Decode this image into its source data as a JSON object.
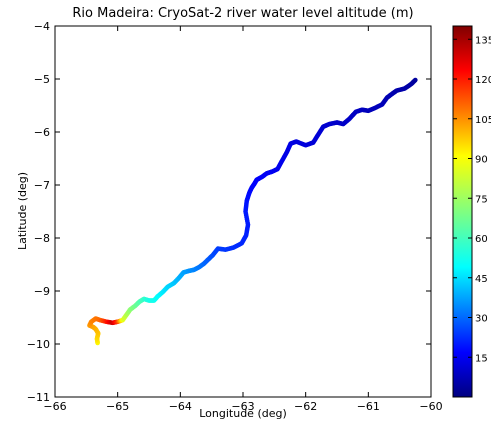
{
  "chart_data": {
    "type": "scatter",
    "title": "Rio Madeira: CryoSat-2 river water level altitude (m)",
    "xlabel": "Longitude (deg)",
    "ylabel": "Latitude (deg)",
    "xlim": [
      -66,
      -60
    ],
    "ylim": [
      -11,
      -4
    ],
    "xticks": [
      -66,
      -65,
      -64,
      -63,
      -62,
      -61,
      -60
    ],
    "yticks": [
      -4,
      -5,
      -6,
      -7,
      -8,
      -9,
      -10,
      -11
    ],
    "grid": false,
    "colorbar": {
      "range": [
        0,
        140
      ],
      "ticks": [
        15,
        30,
        45,
        60,
        75,
        90,
        105,
        120,
        135
      ],
      "colormap": "jet"
    },
    "series": [
      {
        "x": [
          -65.32,
          -65.33,
          -65.31,
          -65.35,
          -65.39,
          -65.45,
          -65.42,
          -65.35,
          -65.28,
          -65.18,
          -65.08,
          -65.0,
          -64.92,
          -64.86,
          -64.8,
          -64.72,
          -64.65,
          -64.58,
          -64.5,
          -64.42,
          -64.36,
          -64.28,
          -64.2,
          -64.1,
          -64.02,
          -63.95,
          -63.86,
          -63.78,
          -63.7,
          -63.62,
          -63.55,
          -63.48,
          -63.4,
          -63.28,
          -63.15,
          -63.02,
          -62.95,
          -62.92,
          -62.96,
          -62.94,
          -62.9,
          -62.86,
          -62.82,
          -62.78,
          -62.7,
          -62.62,
          -62.54,
          -62.45,
          -62.38,
          -62.3,
          -62.24,
          -62.15,
          -62.0,
          -61.88,
          -61.8,
          -61.72,
          -61.62,
          -61.5,
          -61.4,
          -61.3,
          -61.2,
          -61.1,
          -61.0,
          -60.9,
          -60.78,
          -60.7,
          -60.62,
          -60.55,
          -60.42,
          -60.32,
          -60.25
        ],
        "y": [
          -9.98,
          -9.9,
          -9.8,
          -9.72,
          -9.68,
          -9.65,
          -9.58,
          -9.52,
          -9.55,
          -9.58,
          -9.6,
          -9.58,
          -9.55,
          -9.45,
          -9.35,
          -9.28,
          -9.2,
          -9.15,
          -9.18,
          -9.18,
          -9.1,
          -9.02,
          -8.92,
          -8.85,
          -8.75,
          -8.65,
          -8.62,
          -8.6,
          -8.55,
          -8.48,
          -8.4,
          -8.32,
          -8.2,
          -8.22,
          -8.18,
          -8.1,
          -7.95,
          -7.75,
          -7.5,
          -7.3,
          -7.15,
          -7.05,
          -6.98,
          -6.9,
          -6.85,
          -6.78,
          -6.75,
          -6.7,
          -6.55,
          -6.38,
          -6.22,
          -6.18,
          -6.25,
          -6.2,
          -6.05,
          -5.9,
          -5.85,
          -5.82,
          -5.85,
          -5.75,
          -5.62,
          -5.58,
          -5.6,
          -5.55,
          -5.48,
          -5.35,
          -5.28,
          -5.22,
          -5.18,
          -5.1,
          -5.02
        ],
        "c": [
          88,
          92,
          95,
          97,
          99,
          101,
          104,
          106,
          108,
          118,
          130,
          115,
          85,
          78,
          72,
          68,
          64,
          60,
          56,
          55,
          53,
          50,
          47,
          45,
          42,
          40,
          38,
          36,
          34,
          32,
          30,
          28,
          26,
          25,
          24,
          23,
          22,
          21,
          21,
          20,
          19,
          18,
          18,
          17,
          17,
          16,
          16,
          15,
          15,
          14,
          14,
          13,
          13,
          12,
          12,
          11,
          11,
          10,
          10,
          10,
          9,
          9,
          8,
          8,
          8,
          7,
          7,
          6,
          6,
          5,
          4
        ]
      }
    ]
  }
}
